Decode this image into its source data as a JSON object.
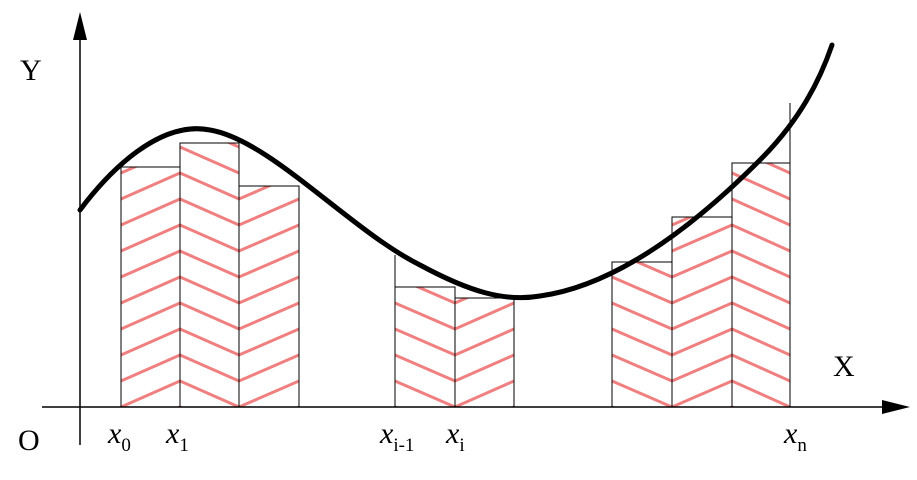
{
  "axes": {
    "y_label": "Y",
    "x_label": "X",
    "origin": "O"
  },
  "partition_labels": [
    {
      "var": "x",
      "sub": "0"
    },
    {
      "var": "x",
      "sub": "1"
    },
    {
      "var": "x",
      "sub": "i-1"
    },
    {
      "var": "x",
      "sub": "i"
    },
    {
      "var": "x",
      "sub": "n"
    }
  ]
}
